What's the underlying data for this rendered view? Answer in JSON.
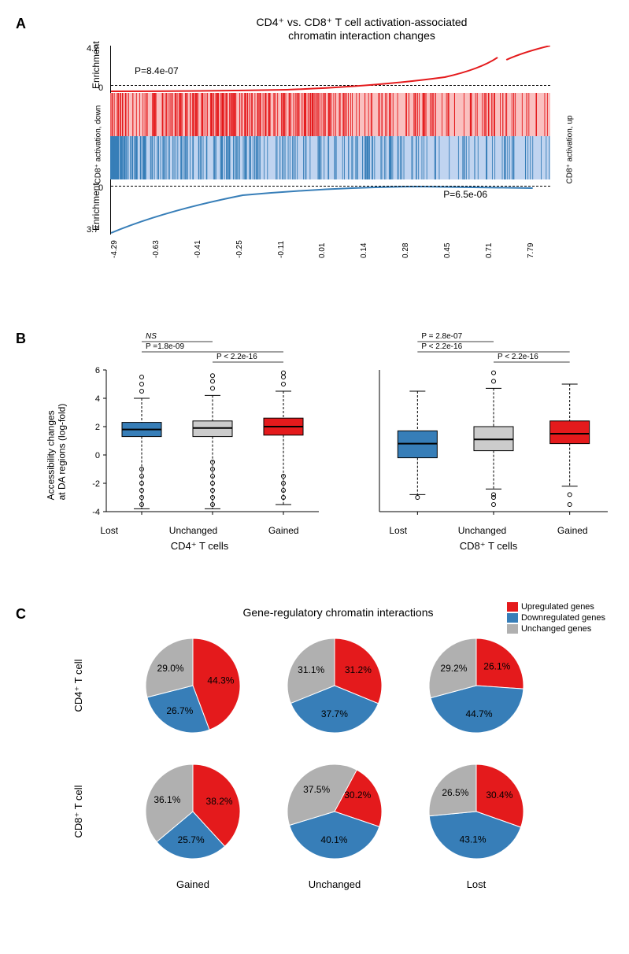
{
  "colors": {
    "red": "#e41a1c",
    "blue": "#377eb8",
    "grey": "#b0b0b0",
    "light_red_bg": "#f8b5b5",
    "light_blue_bg": "#b5c9e8",
    "black": "#000000",
    "white": "#ffffff"
  },
  "panelA": {
    "label": "A",
    "title_line1": "CD4⁺ vs. CD8⁺ T cell activation-associated",
    "title_line2": "chromatin interaction changes",
    "y_label_top": "Enrichment",
    "y_label_bottom": "Enrichment",
    "y_top_max": "4.2",
    "y_top_min": "0",
    "y_bot_min": "0",
    "y_bot_max": "3.7",
    "left_side_label": "CD8⁺ activation, down",
    "right_side_label": "CD8⁺ activation, up",
    "p_top": "P=8.4e-07",
    "p_bottom": "P=6.5e-06",
    "x_ticks": [
      "-4.29",
      "-0.63",
      "-0.41",
      "-0.25",
      "-0.11",
      "0.01",
      "0.14",
      "0.28",
      "0.45",
      "0.71",
      "7.79"
    ],
    "top_curve_color": "#e41a1c",
    "bottom_curve_color": "#377eb8"
  },
  "panelB": {
    "label": "B",
    "y_axis_label": "Accessibility changes\nat DA regions (log-fold)",
    "y_ticks": [
      -4,
      -2,
      0,
      2,
      4,
      6
    ],
    "left": {
      "title": "CD4⁺ T cells",
      "categories": [
        "Lost",
        "Unchanged",
        "Gained"
      ],
      "stats": [
        {
          "label": "NS",
          "italic": true
        },
        {
          "label": "P =1.8e-09"
        },
        {
          "label": "P < 2.2e-16"
        }
      ],
      "boxes": [
        {
          "min": -3.8,
          "q1": 1.3,
          "med": 1.8,
          "q3": 2.3,
          "max": 4.0,
          "color": "#377eb8",
          "outliers": [
            -3.5,
            -3.0,
            -2.5,
            -2.0,
            -1.5,
            -1.0,
            4.5,
            5.0,
            5.5
          ]
        },
        {
          "min": -3.8,
          "q1": 1.3,
          "med": 1.9,
          "q3": 2.4,
          "max": 4.2,
          "color": "#cccccc",
          "outliers": [
            -3.5,
            -3.0,
            -2.5,
            -2.0,
            -1.5,
            -1.0,
            -0.5,
            4.7,
            5.2,
            5.6
          ]
        },
        {
          "min": -3.5,
          "q1": 1.4,
          "med": 2.0,
          "q3": 2.6,
          "max": 4.5,
          "color": "#e41a1c",
          "outliers": [
            -3.0,
            -2.5,
            -2.0,
            -1.5,
            5.0,
            5.5,
            5.8
          ]
        }
      ]
    },
    "right": {
      "title": "CD8⁺ T cells",
      "categories": [
        "Lost",
        "Unchanged",
        "Gained"
      ],
      "stats": [
        {
          "label": "P = 2.8e-07"
        },
        {
          "label": "P < 2.2e-16"
        },
        {
          "label": "P < 2.2e-16"
        }
      ],
      "boxes": [
        {
          "min": -2.8,
          "q1": -0.2,
          "med": 0.8,
          "q3": 1.7,
          "max": 4.5,
          "color": "#377eb8",
          "outliers": [
            -3.0
          ]
        },
        {
          "min": -2.4,
          "q1": 0.3,
          "med": 1.1,
          "q3": 2.0,
          "max": 4.7,
          "color": "#cccccc",
          "outliers": [
            -3.5,
            -3.0,
            -2.8,
            5.2,
            5.8
          ]
        },
        {
          "min": -2.2,
          "q1": 0.8,
          "med": 1.5,
          "q3": 2.4,
          "max": 5.0,
          "color": "#e41a1c",
          "outliers": [
            -3.5,
            -2.8
          ]
        }
      ]
    }
  },
  "panelC": {
    "label": "C",
    "title": "Gene-regulatory chromatin interactions",
    "legend": [
      {
        "label": "Upregulated genes",
        "color": "#e41a1c"
      },
      {
        "label": "Downregulated genes",
        "color": "#377eb8"
      },
      {
        "label": "Unchanged genes",
        "color": "#b0b0b0"
      }
    ],
    "row_labels": [
      "CD4⁺ T cell",
      "CD8⁺ T cell"
    ],
    "col_labels": [
      "Gained",
      "Unchanged",
      "Lost"
    ],
    "pies": [
      [
        {
          "up": 44.3,
          "down": 26.7,
          "unch": 29.0
        },
        {
          "up": 31.2,
          "down": 37.7,
          "unch": 31.1
        },
        {
          "up": 26.1,
          "down": 44.7,
          "unch": 29.2
        }
      ],
      [
        {
          "up": 38.2,
          "down": 25.7,
          "unch": 36.1
        },
        {
          "up": 30.2,
          "down": 40.1,
          "unch": 37.5
        },
        {
          "up": 30.4,
          "down": 43.1,
          "unch": 26.5
        }
      ]
    ]
  }
}
